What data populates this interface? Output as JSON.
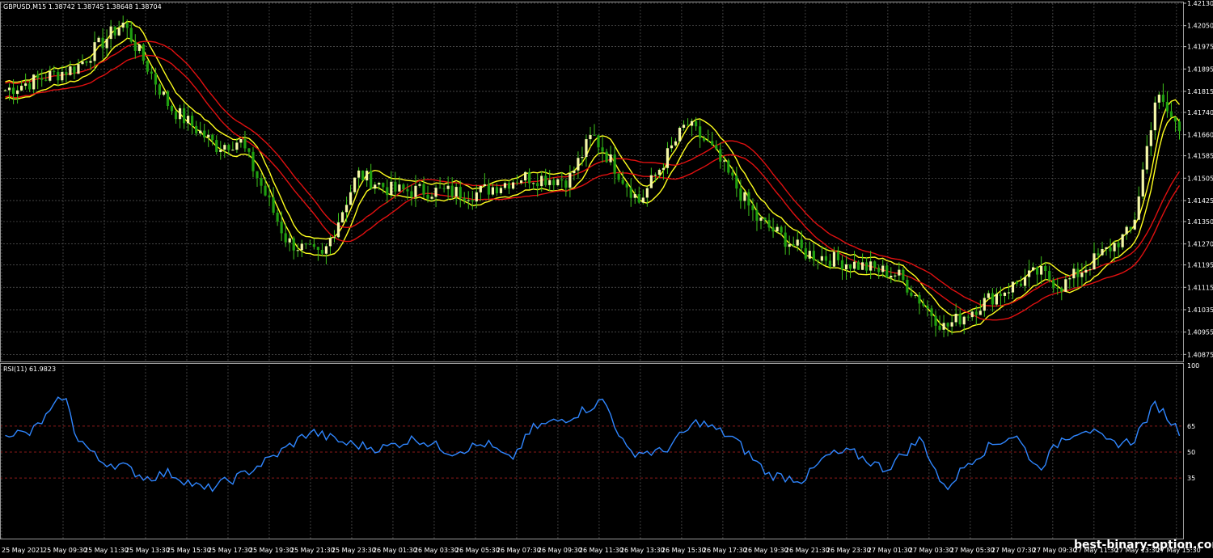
{
  "window": {
    "symbol_header": "GBPUSD,M15  1.38742 1.38745 1.38648 1.38704"
  },
  "watermark": "best-binary-option.com",
  "colors": {
    "background": "#000000",
    "grid": "#5a5a5a",
    "bull_candle": "#f4f7a8",
    "bear_candle": "#1f9f10",
    "wick": "#3ec21a",
    "ma_fast": "#ffff1e",
    "ma_slow": "#e01010",
    "rsi_line": "#2f86ff",
    "rsi_levels": "#8b1a1a"
  },
  "chart_data": [
    {
      "type": "candlestick",
      "symbol": "GBPUSD",
      "timeframe": "M15",
      "price_axis_ticks": [
        "1.42130",
        "1.42050",
        "1.41975",
        "1.41895",
        "1.41815",
        "1.41740",
        "1.41660",
        "1.41585",
        "1.41505",
        "1.41425",
        "1.41350",
        "1.41270",
        "1.41195",
        "1.41115",
        "1.41035",
        "1.40955",
        "1.40875"
      ],
      "ylim": [
        1.4085,
        1.4213
      ],
      "time_axis_ticks": [
        "25 May 2021",
        "25 May 09:30",
        "25 May 11:30",
        "25 May 13:30",
        "25 May 15:30",
        "25 May 17:30",
        "25 May 19:30",
        "25 May 21:30",
        "25 May 23:30",
        "26 May 01:30",
        "26 May 03:30",
        "26 May 05:30",
        "26 May 07:30",
        "26 May 09:30",
        "26 May 11:30",
        "26 May 13:30",
        "26 May 15:30",
        "26 May 17:30",
        "26 May 19:30",
        "26 May 21:30",
        "26 May 23:30",
        "27 May 01:30",
        "27 May 03:30",
        "27 May 05:30",
        "27 May 07:30",
        "27 May 09:30",
        "27 May 11:30",
        "27 May 13:30",
        "27 May 15:30"
      ],
      "close_profile_t": [
        0,
        0.06,
        0.1,
        0.14,
        0.18,
        0.2,
        0.24,
        0.27,
        0.3,
        0.33,
        0.36,
        0.4,
        0.44,
        0.48,
        0.5,
        0.54,
        0.58,
        0.6,
        0.64,
        0.68,
        0.7,
        0.72,
        0.76,
        0.8,
        0.84,
        0.88,
        0.9,
        0.93,
        0.96,
        0.98,
        1
      ],
      "close_profile": [
        1.4182,
        1.419,
        1.4206,
        1.4176,
        1.4162,
        1.4164,
        1.4128,
        1.4122,
        1.4152,
        1.4146,
        1.4146,
        1.4145,
        1.4151,
        1.415,
        1.4166,
        1.4142,
        1.417,
        1.4162,
        1.4136,
        1.4124,
        1.4122,
        1.412,
        1.4116,
        1.4097,
        1.4108,
        1.4117,
        1.4112,
        1.4122,
        1.4132,
        1.418,
        1.4168
      ],
      "candle_count": 290
    },
    {
      "type": "line",
      "indicator": "RSI",
      "header": "RSI(11) 61.9823",
      "y_ticks": [
        "100",
        "65",
        "50",
        "35"
      ],
      "levels": [
        65,
        50,
        35
      ],
      "ylim": [
        0,
        100
      ],
      "rsi_profile_t": [
        0,
        0.02,
        0.04,
        0.05,
        0.06,
        0.08,
        0.1,
        0.12,
        0.14,
        0.17,
        0.2,
        0.23,
        0.26,
        0.29,
        0.32,
        0.35,
        0.38,
        0.41,
        0.43,
        0.45,
        0.48,
        0.51,
        0.53,
        0.56,
        0.59,
        0.62,
        0.65,
        0.68,
        0.7,
        0.72,
        0.75,
        0.78,
        0.8,
        0.82,
        0.84,
        0.86,
        0.88,
        0.9,
        0.92,
        0.94,
        0.96,
        0.98,
        1
      ],
      "rsi_profile": [
        62,
        60,
        74,
        84,
        60,
        45,
        42,
        35,
        38,
        28,
        36,
        48,
        62,
        55,
        52,
        58,
        50,
        55,
        45,
        64,
        70,
        80,
        50,
        50,
        68,
        58,
        37,
        34,
        48,
        50,
        40,
        58,
        28,
        44,
        54,
        60,
        40,
        58,
        64,
        55,
        56,
        78,
        62
      ]
    }
  ]
}
